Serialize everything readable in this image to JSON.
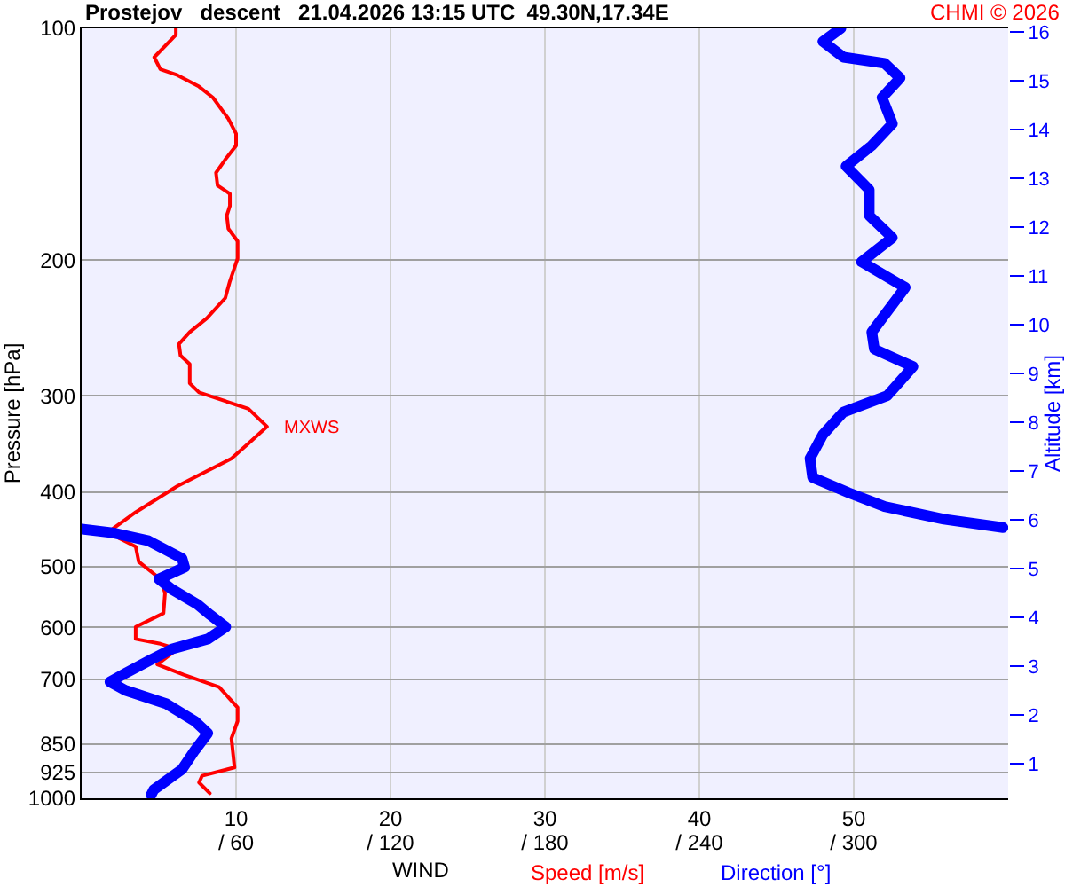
{
  "chart_data": {
    "type": "line",
    "title": "Prostejov   descent   21.04.2026 13:15 UTC  49.30N,17.34E",
    "xlabel": "WIND",
    "ylabel": "Pressure [hPa]",
    "y2label": "Altitude [km]",
    "annotations": [
      "CHMI © 2026",
      "Speed [m/s]",
      "Direction [°]",
      {
        "text": "MXWS",
        "x": 12.0,
        "y": 330
      }
    ],
    "orientation": "horizontal",
    "log": "y",
    "grid": true,
    "marker": "none",
    "line_style": "solid",
    "xlim": [
      0,
      60
    ],
    "xticks": [
      10,
      20,
      30,
      40,
      50
    ],
    "x2lim": [
      0,
      360
    ],
    "x2ticks": [
      {
        "value": 60,
        "label": "/ 60"
      },
      {
        "value": 120,
        "label": "/ 120"
      },
      {
        "value": 180,
        "label": "/ 180"
      },
      {
        "value": 240,
        "label": "/ 240"
      },
      {
        "value": 300,
        "label": "/ 300"
      }
    ],
    "ylim": [
      1000,
      100
    ],
    "yticks": [
      100,
      200,
      300,
      400,
      500,
      600,
      700,
      850,
      925,
      1000
    ],
    "y2lim": [
      0.3,
      16.07
    ],
    "y2ticks": [
      1,
      2,
      3,
      4,
      5,
      6,
      7,
      8,
      9,
      10,
      11,
      12,
      13,
      14,
      15,
      16
    ],
    "series": [
      {
        "color": "#ff0000",
        "x": [
          100,
          102,
          109,
          113,
          115,
          119,
          123,
          131,
          137,
          142,
          148,
          154,
          160,
          164,
          170,
          175,
          182,
          189,
          199,
          213,
          224,
          238,
          248,
          257,
          266,
          273,
          289,
          297,
          303,
          312,
          329,
          346,
          362,
          393,
          425,
          447,
          459,
          471,
          493,
          519,
          541,
          575,
          599,
          621,
          630,
          640,
          670,
          691,
          717,
          762,
          794,
          836,
          912,
          935,
          954,
          985
        ],
        "values": [
          6.1,
          6.1,
          4.7,
          5.1,
          6.2,
          7.6,
          8.5,
          9.5,
          10.0,
          10.0,
          9.3,
          8.7,
          8.8,
          9.6,
          9.6,
          9.4,
          9.5,
          10.1,
          10.1,
          9.6,
          9.3,
          8.1,
          7.0,
          6.3,
          6.4,
          7.0,
          7.0,
          7.6,
          8.9,
          10.8,
          12.0,
          10.8,
          9.7,
          6.2,
          3.5,
          2.0,
          2.4,
          3.5,
          3.7,
          5.1,
          5.4,
          5.3,
          3.5,
          3.5,
          5.1,
          6.2,
          4.9,
          6.6,
          8.9,
          10.1,
          10.1,
          9.7,
          9.9,
          7.8,
          7.6,
          8.3
        ]
      },
      {
        "color": "#0000ff",
        "axis": "x2",
        "x": [
          100,
          104,
          109,
          111,
          116,
          123,
          133,
          142,
          151,
          162,
          175,
          187,
          201,
          217,
          248,
          261,
          275,
          300,
          315,
          337,
          362,
          383,
          401,
          418,
          434,
          445,
          446,
          447,
          452,
          463,
          488,
          501,
          519,
          535,
          560,
          578,
          599,
          621,
          640,
          663,
          688,
          706,
          724,
          754,
          794,
          823,
          866,
          917,
          975,
          990
        ],
        "values": [
          295,
          288,
          296,
          312,
          318,
          311,
          315,
          307,
          297,
          306,
          306,
          315,
          303,
          320,
          307,
          308,
          323,
          313,
          296,
          288,
          283,
          284,
          298,
          312,
          335,
          358,
          null,
          0,
          12,
          26,
          39,
          40,
          30,
          35,
          45,
          50,
          56,
          49,
          35,
          26,
          17,
          11,
          17,
          33,
          44,
          49,
          44,
          39,
          28,
          27
        ]
      }
    ]
  }
}
